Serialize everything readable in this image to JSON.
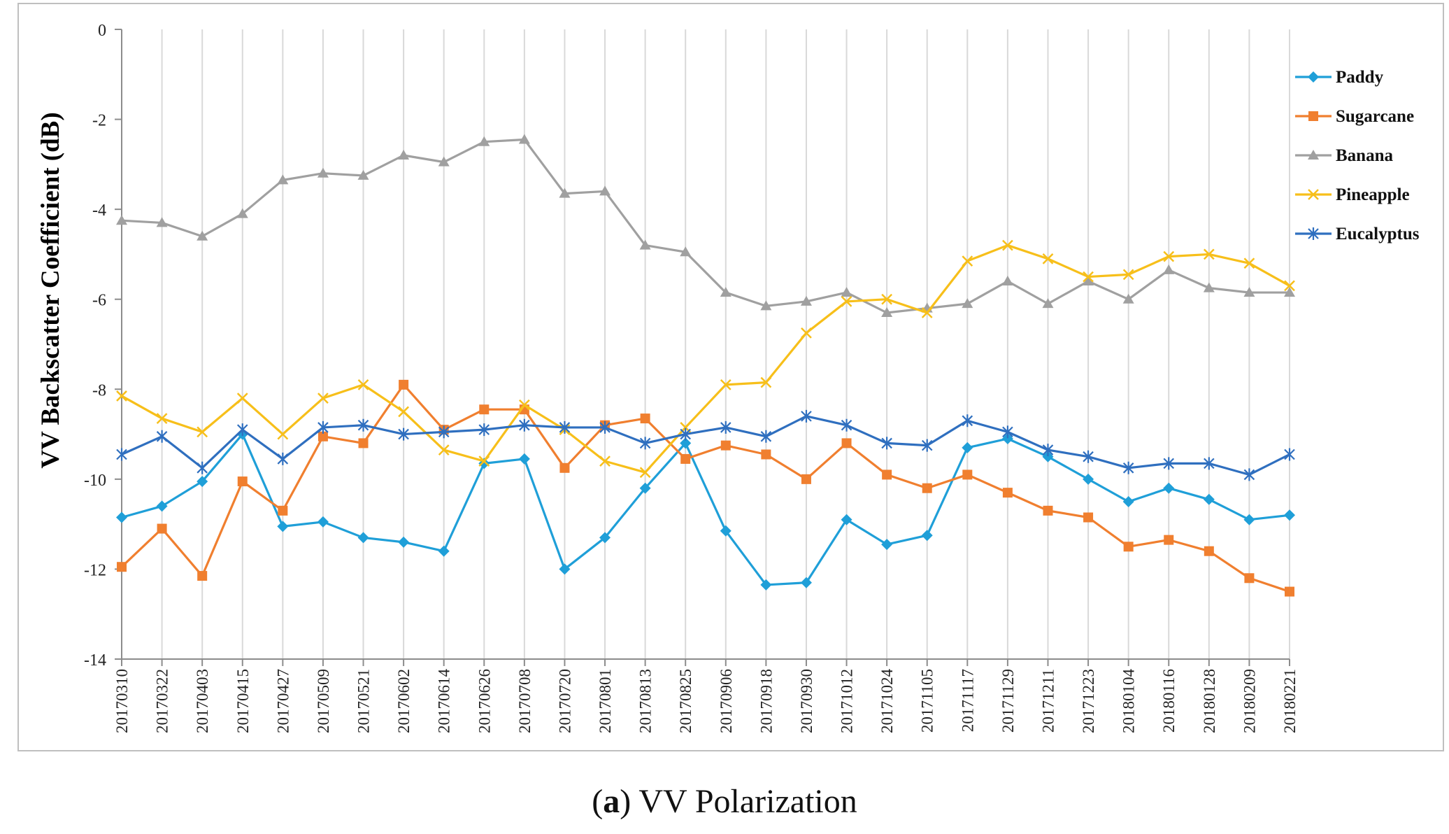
{
  "chart_data": {
    "type": "line",
    "title": "",
    "xlabel": "",
    "ylabel": "VV Backscatter Coefficient (dB)",
    "ylim": [
      -14,
      0
    ],
    "yticks": [
      0,
      -2,
      -4,
      -6,
      -8,
      -10,
      -12,
      -14
    ],
    "grid": "vertical",
    "legend_position": "right",
    "categories": [
      "20170310",
      "20170322",
      "20170403",
      "20170415",
      "20170427",
      "20170509",
      "20170521",
      "20170602",
      "20170614",
      "20170626",
      "20170708",
      "20170720",
      "20170801",
      "20170813",
      "20170825",
      "20170906",
      "20170918",
      "20170930",
      "20171012",
      "20171024",
      "20171105",
      "20171117",
      "20171129",
      "20171211",
      "20171223",
      "20180104",
      "20180116",
      "20180128",
      "20180209",
      "20180221"
    ],
    "series": [
      {
        "name": "Paddy",
        "color": "#1f9fd8",
        "marker": "diamond",
        "values": [
          -10.85,
          -10.6,
          -10.05,
          -9.0,
          -11.05,
          -10.95,
          -11.3,
          -11.4,
          -11.6,
          -9.65,
          -9.55,
          -12.0,
          -11.3,
          -10.2,
          -9.2,
          -11.15,
          -12.35,
          -12.3,
          -10.9,
          -11.45,
          -11.25,
          -9.3,
          -9.1,
          -9.5,
          -10.0,
          -10.5,
          -10.2,
          -10.45,
          -10.9,
          -10.8
        ]
      },
      {
        "name": "Sugarcane",
        "color": "#f07f2f",
        "marker": "square",
        "values": [
          -11.95,
          -11.1,
          -12.15,
          -10.05,
          -10.7,
          -9.05,
          -9.2,
          -7.9,
          -8.9,
          -8.45,
          -8.45,
          -9.75,
          -8.8,
          -8.65,
          -9.55,
          -9.25,
          -9.45,
          -10.0,
          -9.2,
          -9.9,
          -10.2,
          -9.9,
          -10.3,
          -10.7,
          -10.85,
          -11.5,
          -11.35,
          -11.6,
          -12.2,
          -12.5
        ]
      },
      {
        "name": "Banana",
        "color": "#a0a0a0",
        "marker": "triangle",
        "values": [
          -4.25,
          -4.3,
          -4.6,
          -4.1,
          -3.35,
          -3.2,
          -3.25,
          -2.8,
          -2.95,
          -2.5,
          -2.45,
          -3.65,
          -3.6,
          -4.8,
          -4.95,
          -5.85,
          -6.15,
          -6.05,
          -5.85,
          -6.3,
          -6.2,
          -6.1,
          -5.6,
          -6.1,
          -5.6,
          -6.0,
          -5.35,
          -5.75,
          -5.85,
          -5.85
        ]
      },
      {
        "name": "Pineapple",
        "color": "#f7bf1a",
        "marker": "x",
        "values": [
          -8.15,
          -8.65,
          -8.95,
          -8.2,
          -9.0,
          -8.2,
          -7.9,
          -8.5,
          -9.35,
          -9.6,
          -8.35,
          -8.9,
          -9.6,
          -9.85,
          -8.85,
          -7.9,
          -7.85,
          -6.75,
          -6.05,
          -6.0,
          -6.3,
          -5.15,
          -4.8,
          -5.1,
          -5.5,
          -5.45,
          -5.05,
          -5.0,
          -5.2,
          -5.7
        ]
      },
      {
        "name": "Eucalyptus",
        "color": "#2f6fbf",
        "marker": "star",
        "values": [
          -9.45,
          -9.05,
          -9.75,
          -8.9,
          -9.55,
          -8.85,
          -8.8,
          -9.0,
          -8.95,
          -8.9,
          -8.8,
          -8.85,
          -8.85,
          -9.2,
          -9.0,
          -8.85,
          -9.05,
          -8.6,
          -8.8,
          -9.2,
          -9.25,
          -8.7,
          -8.95,
          -9.35,
          -9.5,
          -9.75,
          -9.65,
          -9.65,
          -9.9,
          -9.45
        ]
      }
    ]
  },
  "caption": {
    "letter": "a",
    "open": "(",
    "close": ")",
    "text": " VV Polarization"
  }
}
